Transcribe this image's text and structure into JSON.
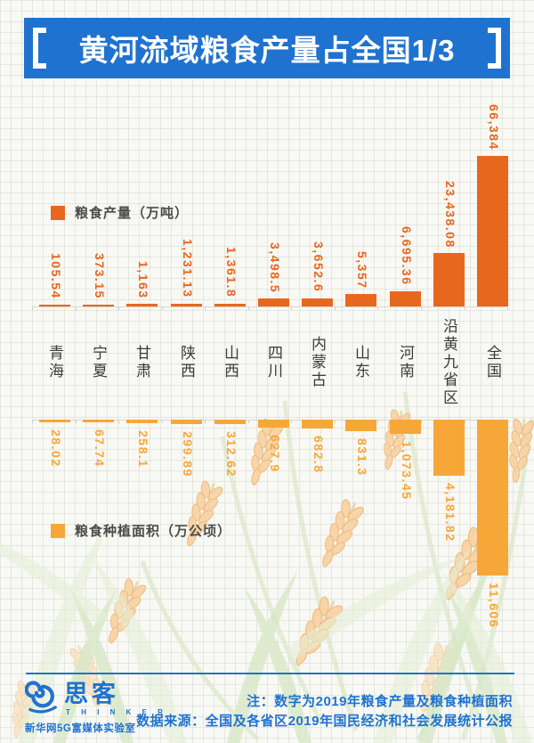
{
  "banner": {
    "title": "黄河流域粮食产量占全国1/3"
  },
  "chart_data": {
    "type": "bar",
    "title": "黄河流域粮食产量占全国1/3",
    "note_year": "2019",
    "grid": true,
    "orientation": "vertical, second series mirrored downward",
    "categories": [
      "青海",
      "宁夏",
      "甘肃",
      "陕西",
      "山西",
      "四川",
      "内蒙古",
      "山东",
      "河南",
      "沿黄九省区",
      "全国"
    ],
    "series": [
      {
        "name": "粮食产量（万吨）",
        "unit": "万吨",
        "direction": "up",
        "color": "#e8671f",
        "legend_position": "top-left",
        "values": [
          105.54,
          373.15,
          1163,
          1231.13,
          1361.8,
          3498.5,
          3652.6,
          5357,
          6695.36,
          23438.08,
          66384
        ],
        "labels": [
          "105.54",
          "373.15",
          "1,163",
          "1,231.13",
          "1,361.8",
          "3,498.5",
          "3,652.6",
          "5,357",
          "6,695.36",
          "23,438.08",
          "66,384"
        ]
      },
      {
        "name": "粮食种植面积（万公顷）",
        "unit": "万公顷",
        "direction": "down",
        "color": "#f7a738",
        "legend_position": "bottom-left",
        "values": [
          28.02,
          67.74,
          258.1,
          299.89,
          312.62,
          627.9,
          682.8,
          831.3,
          1073.45,
          4181.82,
          11606
        ],
        "labels": [
          "28.02",
          "67.74",
          "258.1",
          "299.89",
          "312.62",
          "627.9",
          "682.8",
          "831.3",
          "1,073.45",
          "4,181.82",
          "11,606"
        ]
      }
    ]
  },
  "footer": {
    "note": "注：数字为2019年粮食产量及粮食种植面积",
    "source": "数据来源：全国及各省区2019年国民经济和社会发展统计公报",
    "logo_cn": "思客",
    "logo_en": "T H I N K E R",
    "logo_org": "新华网5G富媒体实验室"
  },
  "colors": {
    "banner_blue": "#1f72d0",
    "production_orange": "#e8671f",
    "area_amber": "#f7a738",
    "category_text": "#3b3b3b",
    "legend_text": "#4b4b4b",
    "footer_blue": "#1f72d0",
    "paper": "#f8f8f4"
  }
}
